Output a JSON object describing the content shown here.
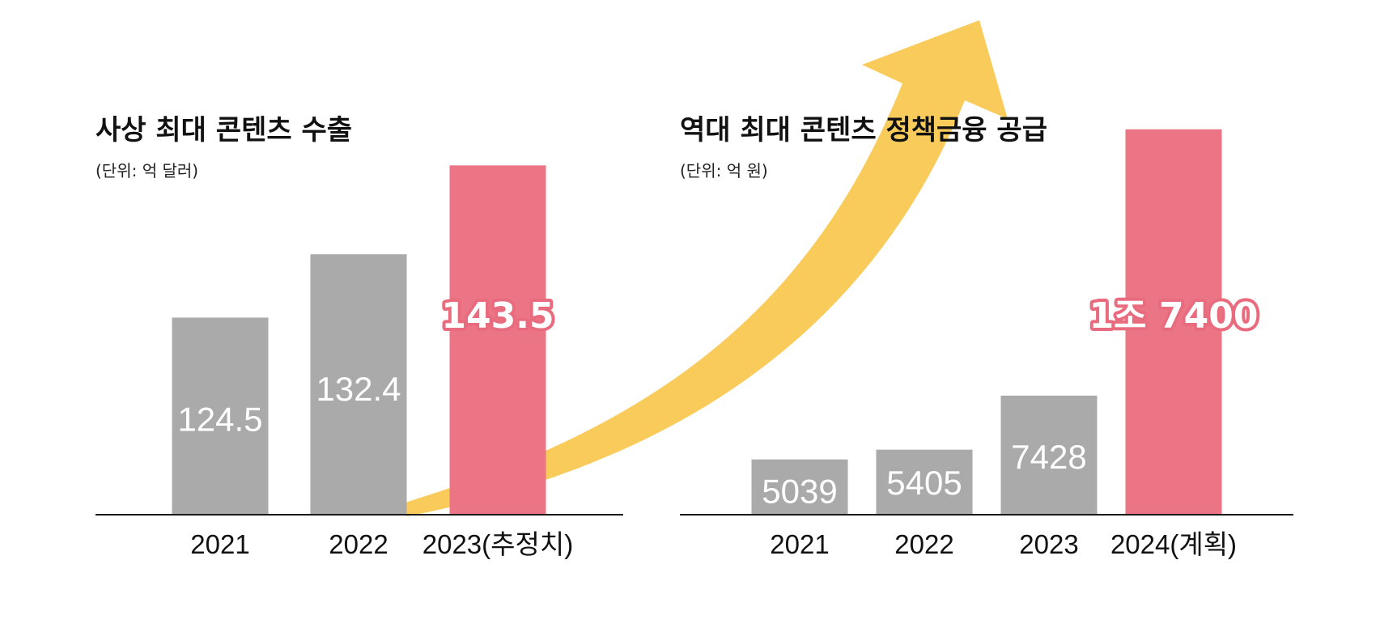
{
  "colors": {
    "bar": "#a9aaa9",
    "highlight": "#ec7585",
    "arrow": "#f9cb5a",
    "axis": "#1a1a1a"
  },
  "chart_data": [
    {
      "type": "bar",
      "title": "사상 최대 콘텐츠 수출",
      "unit_label": "(단위: 억 달러)",
      "categories": [
        "2021",
        "2022",
        "2023(추정치)"
      ],
      "values": [
        124.5,
        132.4,
        143.5
      ],
      "value_labels": [
        "124.5",
        "132.4",
        "143.5"
      ],
      "highlight_index": 2,
      "ylim": [
        100,
        150
      ]
    },
    {
      "type": "bar",
      "title": "역대 최대 콘텐츠 정책금융 공급",
      "unit_label": "(단위: 억 원)",
      "categories": [
        "2021",
        "2022",
        "2023",
        "2024(계획)"
      ],
      "values": [
        5039,
        5405,
        7428,
        17400
      ],
      "value_labels": [
        "5039",
        "5405",
        "7428",
        "1조 7400"
      ],
      "highlight_index": 3,
      "ylim": [
        3000,
        18000
      ]
    }
  ]
}
